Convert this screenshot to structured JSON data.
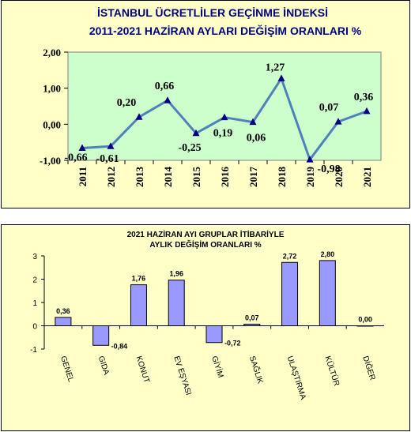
{
  "chart_data": [
    {
      "type": "line",
      "title": "İSTANBUL ÜCRETLİLER GEÇİNME İNDEKSİ",
      "subtitle": "2011-2021 HAZİRAN AYLARI DEĞİŞİM ORANLARI %",
      "categories": [
        "2011",
        "2012",
        "2013",
        "2014",
        "2015",
        "2016",
        "2017",
        "2018",
        "2019",
        "2020",
        "2021"
      ],
      "values": [
        -0.66,
        -0.61,
        0.2,
        0.66,
        -0.25,
        0.19,
        0.06,
        1.27,
        -0.98,
        0.07,
        0.36
      ],
      "data_labels": [
        "-0,66",
        "-0,61",
        "0,20",
        "0,66",
        "-0,25",
        "0,19",
        "0,06",
        "1,27",
        "-0,98",
        "0,07",
        "0,36"
      ],
      "y_ticks": [
        "-1,00",
        "0,00",
        "1,00",
        "2,00"
      ],
      "ylim": [
        -1,
        2
      ],
      "grid": false,
      "colors": {
        "line": "#4f81bd",
        "plot_bg": "#ccffcc",
        "title": "#000080",
        "panel_bg": "#ffffc8"
      }
    },
    {
      "type": "bar",
      "title": "2021 HAZİRAN AYI GRUPLAR İTİBARİYLE",
      "subtitle": "AYLIK DEĞİŞİM ORANLARI %",
      "categories": [
        "GENEL",
        "GIDA",
        "KONUT",
        "EV EŞYASI",
        "GİYİM",
        "SAĞLIK",
        "ULAŞTIRMA",
        "KÜLTÜR",
        "DİĞER"
      ],
      "values": [
        0.36,
        -0.84,
        1.76,
        1.96,
        -0.72,
        0.07,
        2.72,
        2.8,
        0.0
      ],
      "data_labels": [
        "0,36",
        "-0,84",
        "1,76",
        "1,96",
        "-0,72",
        "0,07",
        "2,72",
        "2,80",
        "0,00"
      ],
      "y_ticks": [
        "-1",
        "0",
        "1",
        "2",
        "3"
      ],
      "ylim": [
        -1,
        3
      ],
      "grid": false,
      "colors": {
        "bar": "#9999ff",
        "bar_border": "#000000",
        "panel_bg": "#ffffc8"
      }
    }
  ]
}
